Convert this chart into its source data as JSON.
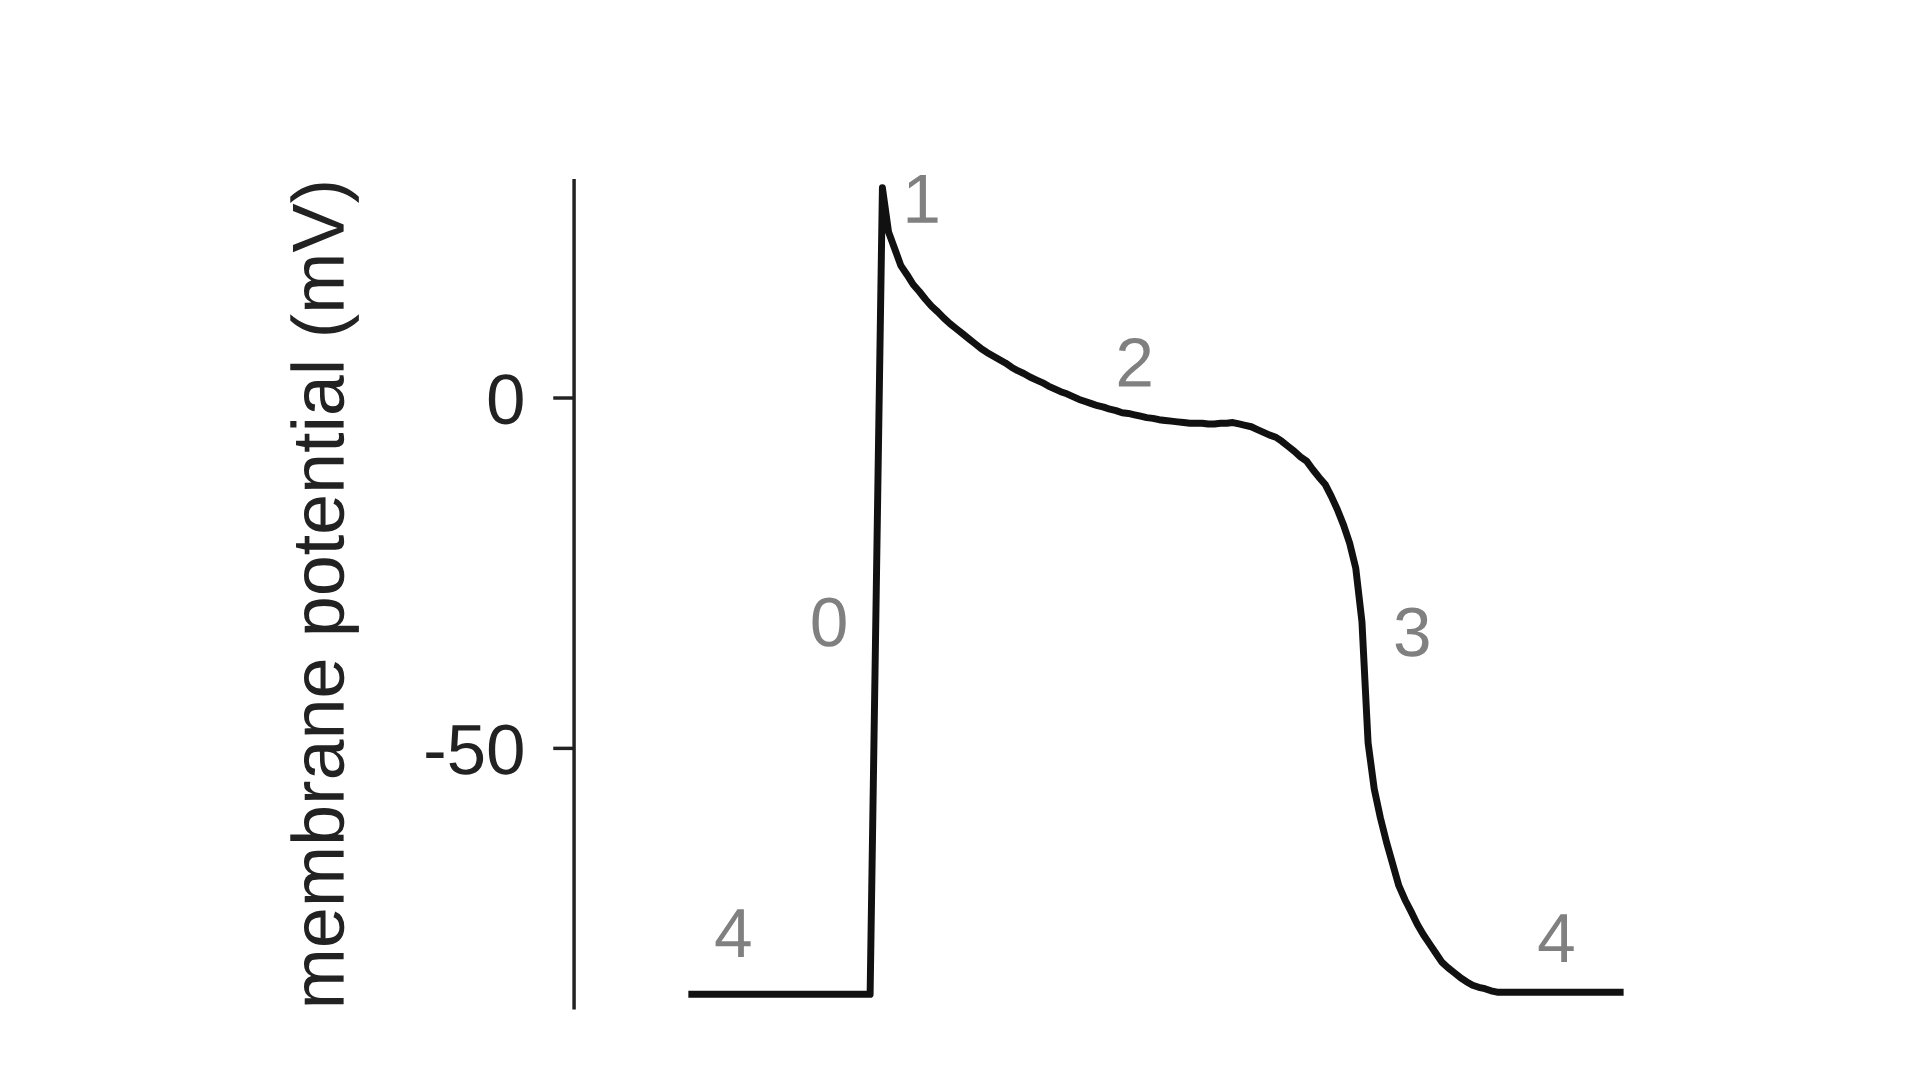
{
  "chart_data": {
    "type": "line",
    "ylabel": "membrane potential (mV)",
    "categories": [
      null,
      null,
      null,
      null,
      null,
      null,
      null,
      null,
      null,
      null,
      null,
      null,
      null,
      null,
      null,
      null,
      null,
      null,
      null,
      null,
      null,
      null,
      null,
      null,
      null,
      null,
      null,
      null,
      null,
      null,
      null,
      null,
      null,
      null,
      null,
      null,
      null,
      null,
      null,
      null,
      null,
      null,
      null,
      null,
      null,
      null,
      null,
      null,
      null,
      null,
      null,
      null,
      null,
      null,
      null,
      null,
      null,
      null,
      null,
      null,
      null,
      null,
      null,
      null,
      null,
      null,
      null,
      null,
      null,
      null,
      null,
      null,
      null,
      null,
      null,
      null,
      null,
      null,
      null,
      null,
      null,
      null,
      null,
      null,
      null,
      null,
      null,
      null,
      null,
      null,
      null,
      null,
      null,
      null,
      null,
      null,
      null,
      null,
      null,
      null,
      null,
      null,
      null,
      null,
      null,
      null,
      null,
      null,
      null,
      null,
      null,
      null,
      null,
      null,
      null,
      null,
      null,
      null,
      null,
      null,
      null,
      null,
      null,
      null,
      null,
      null,
      null,
      null,
      null,
      null,
      null,
      null,
      null,
      null,
      null,
      null,
      null,
      null,
      null,
      null,
      null,
      null,
      null,
      null,
      null,
      null,
      null,
      null,
      null,
      null,
      null,
      null
    ],
    "values": [
      -85.1,
      -85.1,
      -85.1,
      -85.1,
      -85.1,
      -85.1,
      -85.1,
      -85.1,
      -85.1,
      -85.1,
      -85.1,
      -85.1,
      -85.1,
      -85.1,
      -85.1,
      -85.1,
      -85.1,
      -85.1,
      -85.1,
      -85.1,
      -85.1,
      -85.1,
      -85.1,
      -85.1,
      -85.1,
      -85.1,
      -85.1,
      -85.1,
      -85.1,
      -85.1,
      -27.5,
      30,
      23.7,
      21.3,
      18.9,
      17.6,
      16.2,
      15.2,
      14.1,
      13.1,
      12.3,
      11.4,
      10.6,
      9.9,
      9.2,
      8.5,
      7.8,
      7.1,
      6.5,
      6.0,
      5.5,
      5.0,
      4.4,
      3.9,
      3.5,
      3.0,
      2.6,
      2.2,
      1.7,
      1.3,
      0.9,
      0.6,
      0.2,
      -0.2,
      -0.5,
      -0.8,
      -1.1,
      -1.3,
      -1.6,
      -1.8,
      -2.1,
      -2.2,
      -2.4,
      -2.6,
      -2.8,
      -2.9,
      -3.1,
      -3.2,
      -3.3,
      -3.4,
      -3.5,
      -3.6,
      -3.6,
      -3.6,
      -3.7,
      -3.7,
      -3.6,
      -3.6,
      -3.5,
      -3.7,
      -3.9,
      -4.1,
      -4.5,
      -4.9,
      -5.3,
      -5.6,
      -6.2,
      -6.9,
      -7.6,
      -8.4,
      -9.0,
      -10.2,
      -11.3,
      -12.3,
      -14.0,
      -15.9,
      -18.1,
      -20.7,
      -24.3,
      -31.9,
      -49.2,
      -55.8,
      -59.9,
      -63.4,
      -66.5,
      -69.6,
      -71.6,
      -73.3,
      -75.1,
      -76.6,
      -77.9,
      -79.2,
      -80.5,
      -81.3,
      -82.0,
      -82.7,
      -83.3,
      -83.8,
      -84.1,
      -84.3,
      -84.6,
      -84.8,
      -84.8,
      -84.8,
      -84.8,
      -84.8,
      -84.8,
      -84.8,
      -84.8,
      -84.8,
      -84.8,
      -84.8,
      -84.8,
      -84.8,
      -84.8,
      -84.8,
      -84.8,
      -84.8,
      -84.8,
      -84.8,
      -84.8,
      -84.8
    ],
    "annotations": [
      "4",
      "0",
      "1",
      "2",
      "3",
      "4"
    ],
    "color": "#111111",
    "ylim": [
      -87,
      31
    ],
    "yticks": [
      -50,
      0
    ],
    "tick_labels": "y",
    "marker": "none",
    "line_style": "solid"
  }
}
